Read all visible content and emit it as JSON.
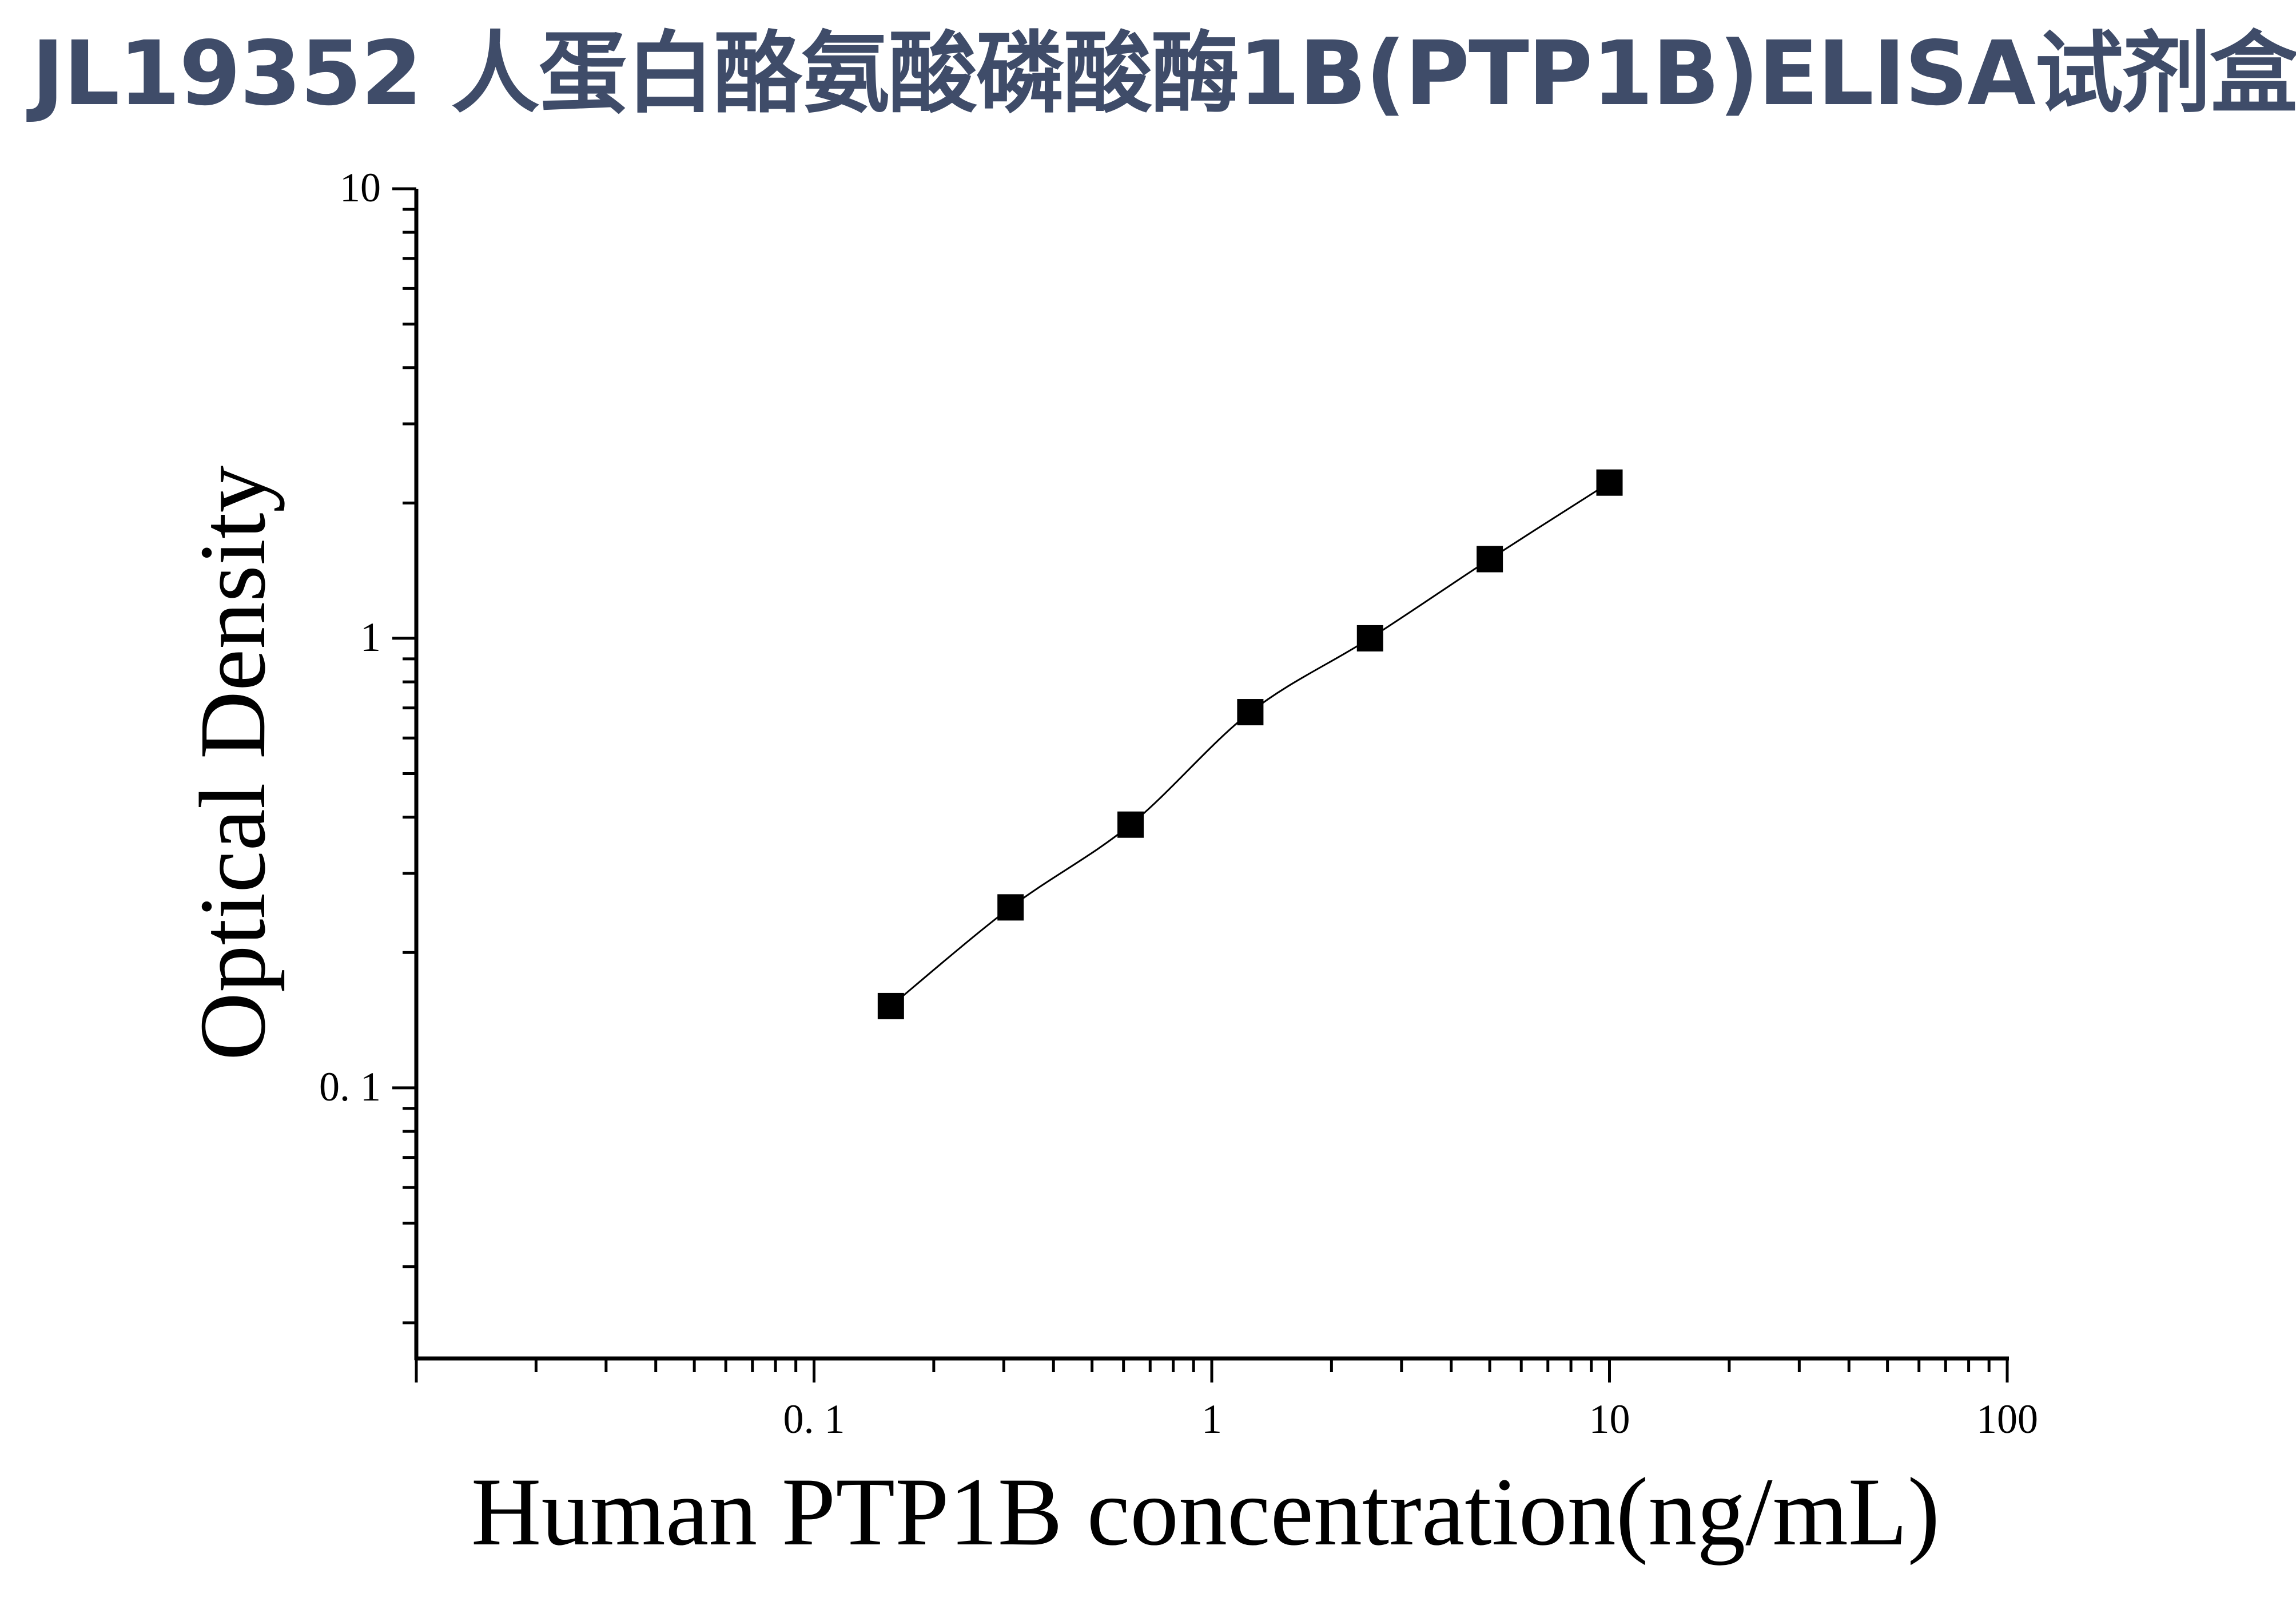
{
  "page": {
    "title": "JL19352 人蛋白酪氨酸磷酸酶1B(PTP1B)ELISA试剂盒"
  },
  "chart_data": {
    "type": "scatter",
    "title": "JL19352 人蛋白酪氨酸磷酸酶1B(PTP1B)ELISA试剂盒",
    "xlabel": "Human PTP1B concentration(ng/mL)",
    "ylabel": "Optical Density",
    "x_scale": "log",
    "y_scale": "log",
    "xlim": [
      0.01,
      100
    ],
    "ylim": [
      0.025,
      10
    ],
    "x_ticks": [
      {
        "value": 0.1,
        "label": "0. 1"
      },
      {
        "value": 1,
        "label": "1"
      },
      {
        "value": 10,
        "label": "10"
      },
      {
        "value": 100,
        "label": "100"
      }
    ],
    "y_ticks": [
      {
        "value": 0.1,
        "label": "0. 1"
      },
      {
        "value": 1,
        "label": "1"
      },
      {
        "value": 10,
        "label": "10"
      }
    ],
    "grid": false,
    "legend": "none",
    "marker": "square",
    "marker_color": "#000000",
    "curve_color": "#000000",
    "title_color": "#3f4c69",
    "series": [
      {
        "x": [
          0.156,
          0.312,
          0.625,
          1.25,
          2.5,
          5,
          10
        ],
        "y": [
          0.152,
          0.252,
          0.385,
          0.685,
          1.0,
          1.5,
          2.22
        ]
      }
    ]
  }
}
